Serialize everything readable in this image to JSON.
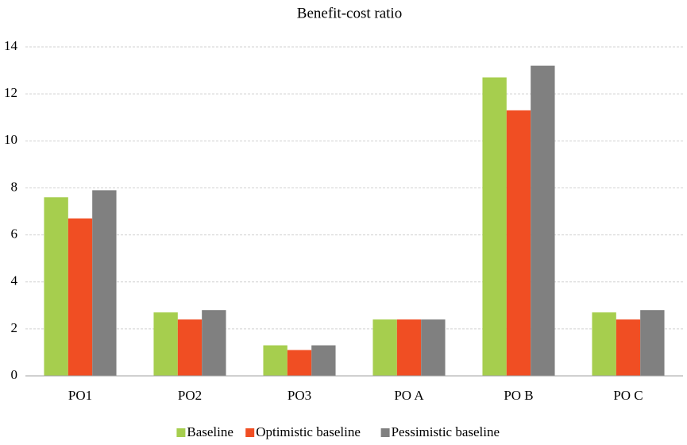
{
  "chart_data": {
    "type": "bar",
    "title": "Benefit-cost ratio",
    "categories": [
      "PO1",
      "PO2",
      "PO3",
      "PO A",
      "PO B",
      "PO C"
    ],
    "series": [
      {
        "name": "Baseline",
        "color": "#a6ce4e",
        "values": [
          7.6,
          2.7,
          1.3,
          2.4,
          12.7,
          2.7
        ]
      },
      {
        "name": "Optimistic baseline",
        "color": "#f04e23",
        "values": [
          6.7,
          2.4,
          1.1,
          2.4,
          11.3,
          2.4
        ]
      },
      {
        "name": "Pessimistic baseline",
        "color": "#808080",
        "values": [
          7.9,
          2.8,
          1.3,
          2.4,
          13.2,
          2.8
        ]
      }
    ],
    "ylim": [
      0,
      14
    ],
    "yticks": [
      0,
      2,
      4,
      6,
      8,
      10,
      12,
      14
    ],
    "grid": true,
    "legend": "bottom"
  }
}
